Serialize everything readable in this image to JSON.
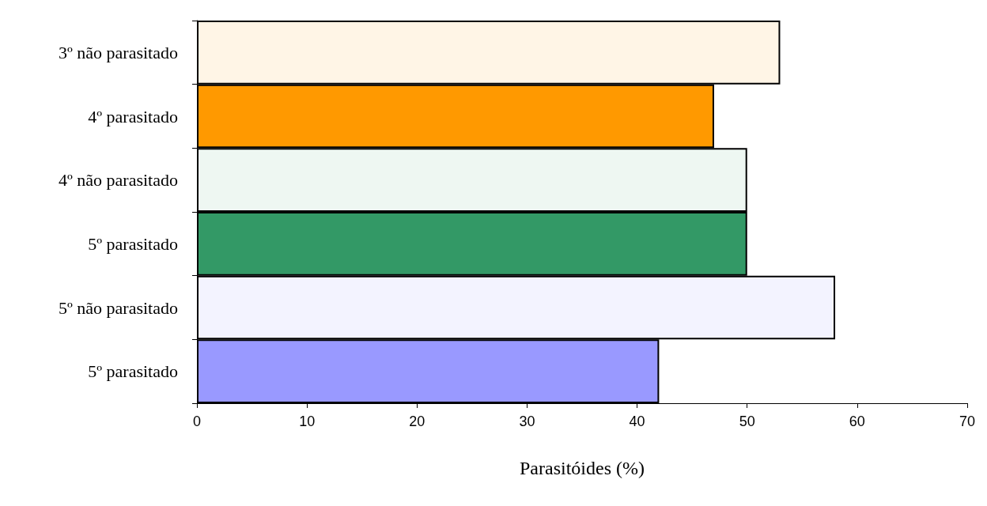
{
  "chart_data": {
    "type": "bar",
    "orientation": "horizontal",
    "xlabel": "Parasitóides (%)",
    "categories": [
      "3º não parasitado",
      "4º parasitado",
      "4º não parasitado",
      "5º parasitado",
      "5º não parasitado",
      "5º parasitado"
    ],
    "values": [
      53,
      47,
      50,
      50,
      58,
      42
    ],
    "colors": [
      "#fff5e6",
      "#ff9900",
      "#eef7f2",
      "#339966",
      "#f3f3ff",
      "#9999ff"
    ],
    "xlim": [
      0,
      70
    ],
    "xticks": [
      0,
      10,
      20,
      30,
      40,
      50,
      60,
      70
    ],
    "grid": false
  }
}
